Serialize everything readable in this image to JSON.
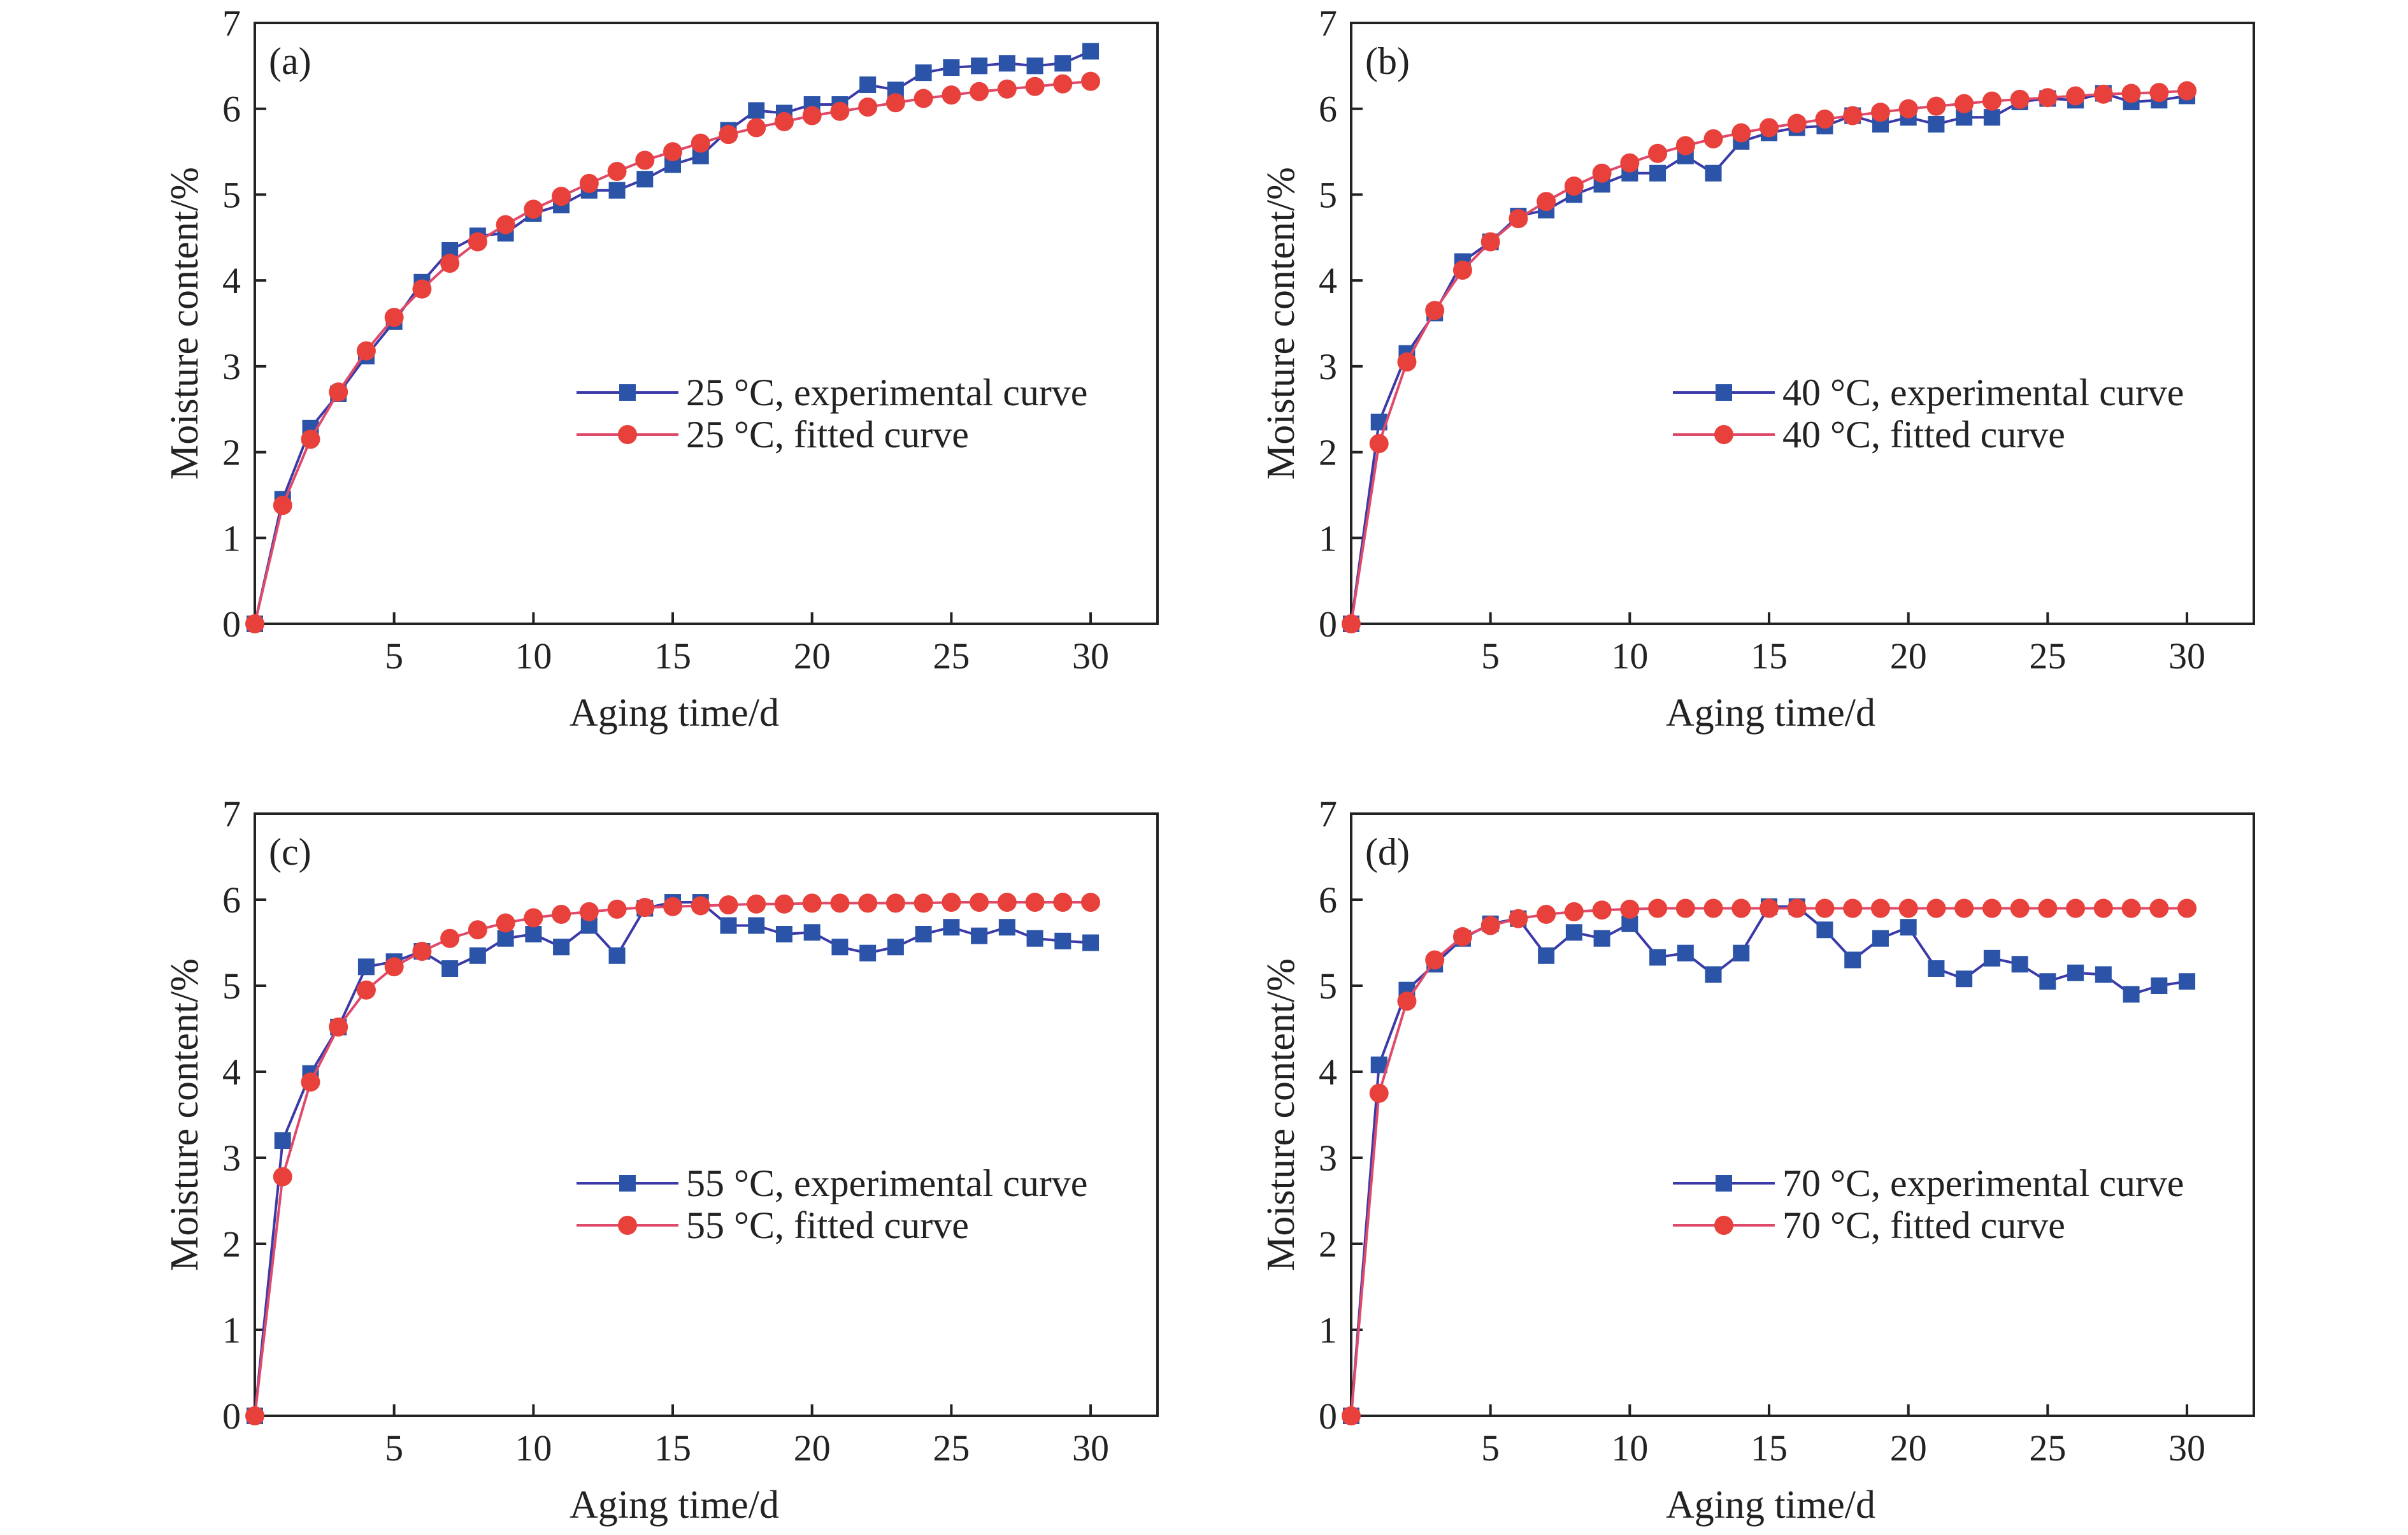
{
  "colors": {
    "experimental": "#2b54a8",
    "experimental_line": "#3a3aa8",
    "fitted": "#e8413c",
    "fitted_line": "#e04a6a",
    "axis": "#222222"
  },
  "chart_data": [
    {
      "type": "line",
      "panel_label": "(a)",
      "xlabel": "Aging time/d",
      "ylabel": "Moisture content/%",
      "xlim": [
        0,
        32.4
      ],
      "ylim": [
        0,
        7
      ],
      "xticks": [
        5,
        10,
        15,
        20,
        25,
        30
      ],
      "yticks": [
        0,
        1,
        2,
        3,
        4,
        5,
        6,
        7
      ],
      "grid": false,
      "legend_position": "center-right",
      "x": [
        0,
        1,
        2,
        3,
        4,
        5,
        6,
        7,
        8,
        9,
        10,
        11,
        12,
        13,
        14,
        15,
        16,
        17,
        18,
        19,
        20,
        21,
        22,
        23,
        24,
        25,
        26,
        27,
        28,
        29,
        30
      ],
      "series": [
        {
          "name": "25 °C, experimental curve",
          "marker": "square",
          "values": [
            0,
            1.45,
            2.28,
            2.68,
            3.12,
            3.52,
            3.98,
            4.35,
            4.52,
            4.55,
            4.78,
            4.88,
            5.05,
            5.05,
            5.18,
            5.35,
            5.45,
            5.75,
            5.98,
            5.95,
            6.05,
            6.05,
            6.28,
            6.22,
            6.42,
            6.48,
            6.5,
            6.53,
            6.5,
            6.53,
            6.67
          ]
        },
        {
          "name": "25 °C, fitted curve",
          "marker": "circle",
          "values": [
            0,
            1.38,
            2.15,
            2.7,
            3.18,
            3.57,
            3.9,
            4.2,
            4.45,
            4.65,
            4.83,
            4.98,
            5.13,
            5.27,
            5.4,
            5.5,
            5.6,
            5.7,
            5.78,
            5.85,
            5.92,
            5.97,
            6.02,
            6.07,
            6.12,
            6.16,
            6.2,
            6.23,
            6.26,
            6.29,
            6.32
          ]
        }
      ]
    },
    {
      "type": "line",
      "panel_label": "(b)",
      "xlabel": "Aging time/d",
      "ylabel": "Moisture content/%",
      "xlim": [
        0,
        32.4
      ],
      "ylim": [
        0,
        7
      ],
      "xticks": [
        5,
        10,
        15,
        20,
        25,
        30
      ],
      "yticks": [
        0,
        1,
        2,
        3,
        4,
        5,
        6,
        7
      ],
      "grid": false,
      "legend_position": "center-right",
      "x": [
        0,
        1,
        2,
        3,
        4,
        5,
        6,
        7,
        8,
        9,
        10,
        11,
        12,
        13,
        14,
        15,
        16,
        17,
        18,
        19,
        20,
        21,
        22,
        23,
        24,
        25,
        26,
        27,
        28,
        29,
        30
      ],
      "series": [
        {
          "name": "40 °C, experimental curve",
          "marker": "square",
          "values": [
            0,
            2.35,
            3.15,
            3.62,
            4.22,
            4.45,
            4.75,
            4.82,
            5.0,
            5.12,
            5.25,
            5.25,
            5.45,
            5.25,
            5.62,
            5.72,
            5.78,
            5.8,
            5.92,
            5.82,
            5.9,
            5.82,
            5.9,
            5.9,
            6.08,
            6.12,
            6.1,
            6.18,
            6.08,
            6.1,
            6.15
          ]
        },
        {
          "name": "40 °C, fitted curve",
          "marker": "circle",
          "values": [
            0,
            2.1,
            3.05,
            3.65,
            4.12,
            4.45,
            4.72,
            4.92,
            5.1,
            5.25,
            5.37,
            5.48,
            5.57,
            5.65,
            5.72,
            5.78,
            5.83,
            5.88,
            5.92,
            5.96,
            6.0,
            6.03,
            6.06,
            6.09,
            6.11,
            6.13,
            6.15,
            6.17,
            6.18,
            6.19,
            6.21
          ]
        }
      ]
    },
    {
      "type": "line",
      "panel_label": "(c)",
      "xlabel": "Aging time/d",
      "ylabel": "Moisture content/%",
      "xlim": [
        0,
        32.4
      ],
      "ylim": [
        0,
        7
      ],
      "xticks": [
        5,
        10,
        15,
        20,
        25,
        30
      ],
      "yticks": [
        0,
        1,
        2,
        3,
        4,
        5,
        6,
        7
      ],
      "grid": false,
      "legend_position": "center-right",
      "x": [
        0,
        1,
        2,
        3,
        4,
        5,
        6,
        7,
        8,
        9,
        10,
        11,
        12,
        13,
        14,
        15,
        16,
        17,
        18,
        19,
        20,
        21,
        22,
        23,
        24,
        25,
        26,
        27,
        28,
        29,
        30
      ],
      "series": [
        {
          "name": "55 °C, experimental curve",
          "marker": "square",
          "values": [
            0,
            3.2,
            3.98,
            4.52,
            5.22,
            5.28,
            5.4,
            5.2,
            5.35,
            5.55,
            5.6,
            5.45,
            5.7,
            5.35,
            5.9,
            5.97,
            5.97,
            5.7,
            5.7,
            5.6,
            5.62,
            5.45,
            5.38,
            5.45,
            5.6,
            5.68,
            5.58,
            5.68,
            5.55,
            5.52,
            5.5
          ]
        },
        {
          "name": "55 °C, fitted curve",
          "marker": "circle",
          "values": [
            0,
            2.78,
            3.88,
            4.52,
            4.95,
            5.22,
            5.4,
            5.55,
            5.65,
            5.73,
            5.79,
            5.83,
            5.86,
            5.89,
            5.91,
            5.92,
            5.93,
            5.94,
            5.95,
            5.95,
            5.96,
            5.96,
            5.96,
            5.96,
            5.96,
            5.97,
            5.97,
            5.97,
            5.97,
            5.97,
            5.97
          ]
        }
      ]
    },
    {
      "type": "line",
      "panel_label": "(d)",
      "xlabel": "Aging time/d",
      "ylabel": "Moisture content/%",
      "xlim": [
        0,
        32.4
      ],
      "ylim": [
        0,
        7
      ],
      "xticks": [
        5,
        10,
        15,
        20,
        25,
        30
      ],
      "yticks": [
        0,
        1,
        2,
        3,
        4,
        5,
        6,
        7
      ],
      "grid": false,
      "legend_position": "center-right",
      "x": [
        0,
        1,
        2,
        3,
        4,
        5,
        6,
        7,
        8,
        9,
        10,
        11,
        12,
        13,
        14,
        15,
        16,
        17,
        18,
        19,
        20,
        21,
        22,
        23,
        24,
        25,
        26,
        27,
        28,
        29,
        30
      ],
      "series": [
        {
          "name": "70 °C, experimental curve",
          "marker": "square",
          "values": [
            0,
            4.08,
            4.95,
            5.25,
            5.55,
            5.72,
            5.78,
            5.35,
            5.62,
            5.55,
            5.72,
            5.33,
            5.38,
            5.13,
            5.38,
            5.92,
            5.92,
            5.65,
            5.3,
            5.55,
            5.68,
            5.2,
            5.08,
            5.32,
            5.25,
            5.05,
            5.15,
            5.13,
            4.9,
            5.0,
            5.05
          ]
        },
        {
          "name": "70 °C, fitted curve",
          "marker": "circle",
          "values": [
            0,
            3.75,
            4.82,
            5.3,
            5.57,
            5.7,
            5.78,
            5.83,
            5.86,
            5.88,
            5.89,
            5.9,
            5.9,
            5.9,
            5.9,
            5.9,
            5.9,
            5.9,
            5.9,
            5.9,
            5.9,
            5.9,
            5.9,
            5.9,
            5.9,
            5.9,
            5.9,
            5.9,
            5.9,
            5.9,
            5.9
          ]
        }
      ]
    }
  ]
}
